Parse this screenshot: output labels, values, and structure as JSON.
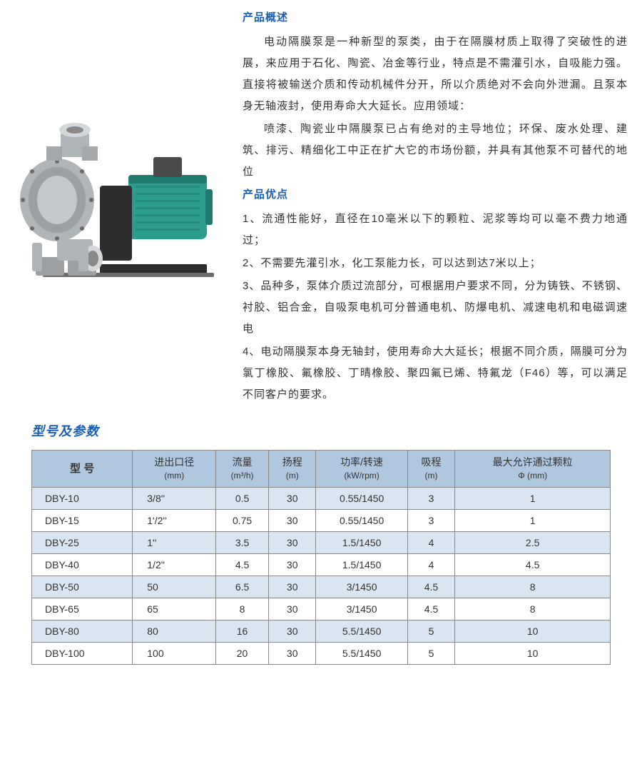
{
  "overview": {
    "heading": "产品概述",
    "p1": "电动隔膜泵是一种新型的泵类，由于在隔膜材质上取得了突破性的进展，来应用于石化、陶瓷、冶金等行业，特点是不需灌引水，自吸能力强。直接将被输送介质和传动机械件分开，所以介质绝对不会向外泄漏。且泵本身无轴液封，使用寿命大大延长。应用领域：",
    "p2": "喷漆、陶瓷业中隔膜泵已占有绝对的主导地位；环保、废水处理、建筑、排污、精细化工中正在扩大它的市场份额，并具有其他泵不可替代的地位"
  },
  "advantages": {
    "heading": "产品优点",
    "items": [
      "1、流通性能好，直径在10毫米以下的颗粒、泥浆等均可以毫不费力地通过；",
      "2、不需要先灌引水，化工泵能力长，可以达到达7米以上；",
      "3、品种多，泵体介质过流部分，可根据用户要求不同，分为铸铁、不锈钢、衬胶、铝合金，自吸泵电机可分普通电机、防爆电机、减速电机和电磁调速电",
      "4、电动隔膜泵本身无轴封，使用寿命大大延长；根据不同介质，隔膜可分为氯丁橡胶、氟橡胶、丁晴橡胶、聚四氟已烯、特氟龙（F46）等，可以满足不同客户的要求。"
    ]
  },
  "specs": {
    "heading": "型号及参数",
    "columns": [
      {
        "label": "型 号",
        "unit": ""
      },
      {
        "label": "进出口径",
        "unit": "(mm)"
      },
      {
        "label": "流量",
        "unit": "(m³/h)"
      },
      {
        "label": "扬程",
        "unit": "(m)"
      },
      {
        "label": "功率/转速",
        "unit": "(kW/rpm)"
      },
      {
        "label": "吸程",
        "unit": "(m)"
      },
      {
        "label": "最大允许通过颗粒",
        "unit": "Φ (mm)"
      }
    ],
    "rows": [
      [
        "DBY-10",
        "3/8''",
        "0.5",
        "30",
        "0.55/1450",
        "3",
        "1"
      ],
      [
        "DBY-15",
        "1'/2''",
        "0.75",
        "30",
        "0.55/1450",
        "3",
        "1"
      ],
      [
        "DBY-25",
        "1''",
        "3.5",
        "30",
        "1.5/1450",
        "4",
        "2.5"
      ],
      [
        "DBY-40",
        "1/2''",
        "4.5",
        "30",
        "1.5/1450",
        "4",
        "4.5"
      ],
      [
        "DBY-50",
        "50",
        "6.5",
        "30",
        "3/1450",
        "4.5",
        "8"
      ],
      [
        "DBY-65",
        "65",
        "8",
        "30",
        "3/1450",
        "4.5",
        "8"
      ],
      [
        "DBY-80",
        "80",
        "16",
        "30",
        "5.5/1450",
        "5",
        "10"
      ],
      [
        "DBY-100",
        "100",
        "20",
        "30",
        "5.5/1450",
        "5",
        "10"
      ]
    ],
    "header_bg": "#afc8e0",
    "row_odd_bg": "#d9e6f2",
    "row_even_bg": "#ffffff",
    "border_color": "#8a8a8a"
  },
  "colors": {
    "heading_color": "#1a5fb4",
    "body_text": "#333333",
    "pump_body": "#b0b5b8",
    "pump_motor": "#2a9d8f",
    "pump_base": "#2d2d2d"
  }
}
